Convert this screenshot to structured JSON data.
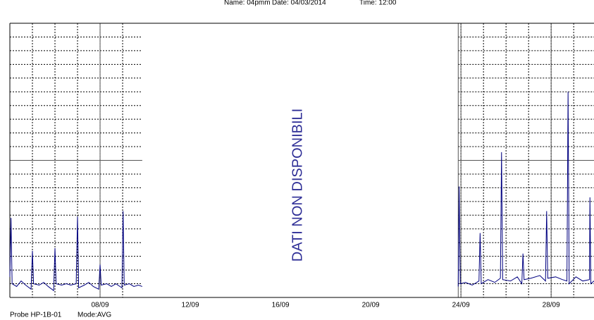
{
  "header": {
    "name": "Name: 04pmm",
    "date": "Date: 04/03/2014",
    "time": "Time: 12:00"
  },
  "footer": {
    "probe": "Probe HP-1B-01",
    "mode": "Mode:AVG"
  },
  "chart_data": {
    "type": "line",
    "annotation": "DATI NON DISPONIBILI",
    "x": [
      4.0,
      4.05,
      4.1,
      4.3,
      4.5,
      4.7,
      4.94,
      5.0,
      5.05,
      5.3,
      5.5,
      5.7,
      5.94,
      6.0,
      6.05,
      6.3,
      6.5,
      6.7,
      6.94,
      7.0,
      7.05,
      7.3,
      7.5,
      7.7,
      7.94,
      8.0,
      8.05,
      8.3,
      8.5,
      8.7,
      8.97,
      9.02,
      9.07,
      9.3,
      9.5,
      9.7,
      9.87,
      16,
      23.88,
      23.92,
      23.97,
      24.2,
      24.5,
      24.8,
      24.85,
      24.9,
      25.2,
      25.5,
      25.75,
      25.8,
      25.85,
      26.2,
      26.5,
      26.7,
      26.75,
      26.8,
      27.1,
      27.5,
      27.75,
      27.8,
      27.85,
      28.2,
      28.5,
      28.7,
      28.75,
      28.8,
      29.1,
      29.4,
      29.7,
      29.72,
      29.76,
      29.9
    ],
    "series": [
      {
        "color": "#000080",
        "values": [
          1.5,
          5.8,
          1.0,
          0.8,
          1.2,
          0.9,
          0.6,
          3.4,
          1.0,
          0.9,
          1.1,
          0.8,
          0.5,
          3.6,
          1.0,
          0.9,
          1.0,
          0.9,
          1.0,
          5.9,
          0.7,
          0.9,
          1.1,
          0.8,
          0.6,
          2.4,
          0.9,
          1.0,
          0.8,
          1.0,
          0.7,
          6.3,
          0.9,
          1.0,
          0.8,
          0.9,
          0.8,
          null,
          0.8,
          8.1,
          1.0,
          1.1,
          0.9,
          1.2,
          4.7,
          1.0,
          1.3,
          1.1,
          1.4,
          10.6,
          1.3,
          1.2,
          1.5,
          1.0,
          3.2,
          1.3,
          1.4,
          1.6,
          1.2,
          6.3,
          1.4,
          1.5,
          1.3,
          1.2,
          15.0,
          1.0,
          1.5,
          1.2,
          1.3,
          7.3,
          1.0,
          1.2
        ]
      }
    ],
    "xlim": [
      4,
      29.9
    ],
    "xticks": [
      {
        "value": 8,
        "label": "08/09"
      },
      {
        "value": 12,
        "label": "12/09"
      },
      {
        "value": 16,
        "label": "16/09"
      },
      {
        "value": 20,
        "label": "20/09"
      },
      {
        "value": 24,
        "label": "24/09"
      },
      {
        "value": 28,
        "label": "28/09"
      }
    ],
    "ylim": [
      0,
      20
    ],
    "yticks": [
      0,
      1,
      2,
      3,
      4,
      5,
      6,
      7,
      8,
      9,
      10,
      11,
      12,
      13,
      14,
      15,
      16,
      17,
      18,
      19,
      20
    ],
    "grid": true
  }
}
